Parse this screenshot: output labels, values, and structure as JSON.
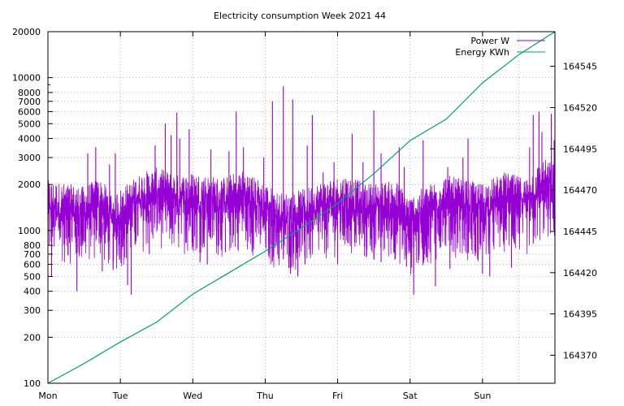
{
  "chart_data": {
    "type": "line",
    "title": "Electricity consumption Week 2021 44",
    "x": {
      "categories": [
        "Mon",
        "Tue",
        "Wed",
        "Thu",
        "Fri",
        "Sat",
        "Sun"
      ],
      "range_days": [
        0,
        7
      ],
      "grid": true
    },
    "y_left": {
      "scale": "log",
      "range": [
        100,
        20000
      ],
      "ticks": [
        100,
        200,
        300,
        400,
        500,
        600,
        700,
        800,
        1000,
        2000,
        3000,
        4000,
        5000,
        6000,
        7000,
        8000,
        10000,
        20000
      ],
      "tick_labels": [
        "100",
        "200",
        "300",
        "400",
        "500",
        "600",
        "700",
        "800",
        "1000",
        "2000",
        "3000",
        "4000",
        "5000",
        "6000",
        "7000",
        "8000",
        "10000",
        "20000"
      ],
      "grid": true
    },
    "y_right": {
      "scale": "linear",
      "range": [
        164353,
        164566
      ],
      "ticks": [
        164370,
        164395,
        164420,
        164445,
        164470,
        164495,
        164520,
        164545
      ],
      "tick_labels": [
        "164370",
        "164395",
        "164420",
        "164445",
        "164470",
        "164495",
        "164520",
        "164545"
      ]
    },
    "legend": {
      "placement": "top-right",
      "entries": [
        "Power W",
        "Energy KWh"
      ]
    },
    "series": [
      {
        "name": "Power W",
        "axis": "left",
        "color": "#9400d3",
        "style": "dense-noisy",
        "baseline": [
          [
            0,
            1150
          ],
          [
            0.5,
            1050
          ],
          [
            0.7,
            1200
          ],
          [
            0.9,
            950
          ],
          [
            1.1,
            1100
          ],
          [
            1.3,
            1300
          ],
          [
            1.5,
            1400
          ],
          [
            1.8,
            1250
          ],
          [
            2.0,
            1300
          ],
          [
            2.4,
            1200
          ],
          [
            2.7,
            1350
          ],
          [
            3.0,
            1100
          ],
          [
            3.2,
            950
          ],
          [
            3.5,
            1000
          ],
          [
            3.8,
            1150
          ],
          [
            4.1,
            1250
          ],
          [
            4.4,
            1100
          ],
          [
            4.8,
            1150
          ],
          [
            5.0,
            900
          ],
          [
            5.2,
            1050
          ],
          [
            5.5,
            1250
          ],
          [
            5.8,
            1150
          ],
          [
            6.0,
            1100
          ],
          [
            6.3,
            1300
          ],
          [
            6.6,
            1200
          ],
          [
            6.85,
            1600
          ],
          [
            7.0,
            1500
          ]
        ],
        "peaks": [
          [
            0.55,
            3200
          ],
          [
            0.66,
            3500
          ],
          [
            0.85,
            2700
          ],
          [
            0.93,
            3200
          ],
          [
            1.48,
            3600
          ],
          [
            1.7,
            4200
          ],
          [
            1.62,
            5000
          ],
          [
            1.78,
            5900
          ],
          [
            1.82,
            4000
          ],
          [
            1.95,
            4600
          ],
          [
            2.25,
            3400
          ],
          [
            2.5,
            3300
          ],
          [
            2.6,
            6000
          ],
          [
            2.7,
            3500
          ],
          [
            2.98,
            3000
          ],
          [
            3.1,
            7000
          ],
          [
            3.25,
            8800
          ],
          [
            3.38,
            7200
          ],
          [
            3.58,
            3600
          ],
          [
            3.65,
            5700
          ],
          [
            3.8,
            2400
          ],
          [
            3.95,
            2800
          ],
          [
            4.2,
            4300
          ],
          [
            4.35,
            2800
          ],
          [
            4.5,
            6100
          ],
          [
            4.6,
            3200
          ],
          [
            4.85,
            3500
          ],
          [
            4.92,
            2600
          ],
          [
            5.18,
            3900
          ],
          [
            5.52,
            2600
          ],
          [
            5.73,
            3000
          ],
          [
            5.8,
            4000
          ],
          [
            6.0,
            2000
          ],
          [
            6.25,
            2200
          ],
          [
            6.38,
            2100
          ],
          [
            6.5,
            2000
          ],
          [
            6.65,
            3500
          ],
          [
            6.7,
            5700
          ],
          [
            6.78,
            6000
          ],
          [
            6.82,
            4400
          ],
          [
            6.95,
            5800
          ],
          [
            6.99,
            3900
          ]
        ],
        "dips": [
          [
            0.05,
            500
          ],
          [
            0.4,
            400
          ],
          [
            0.75,
            540
          ],
          [
            0.9,
            560
          ],
          [
            1.1,
            440
          ],
          [
            1.15,
            380
          ],
          [
            1.4,
            700
          ],
          [
            2.1,
            620
          ],
          [
            2.2,
            600
          ],
          [
            2.45,
            720
          ],
          [
            3.1,
            640
          ],
          [
            3.25,
            650
          ],
          [
            3.35,
            520
          ],
          [
            3.45,
            500
          ],
          [
            3.55,
            600
          ],
          [
            4.0,
            600
          ],
          [
            4.4,
            680
          ],
          [
            4.6,
            620
          ],
          [
            4.95,
            580
          ],
          [
            5.05,
            380
          ],
          [
            5.35,
            430
          ],
          [
            5.55,
            560
          ],
          [
            5.9,
            680
          ],
          [
            6.0,
            520
          ],
          [
            6.1,
            500
          ],
          [
            6.4,
            570
          ],
          [
            6.7,
            820
          ]
        ]
      },
      {
        "name": "Energy KWh",
        "axis": "right",
        "color": "#009e73",
        "points": [
          [
            0,
            164353
          ],
          [
            0.5,
            164365
          ],
          [
            1,
            164378
          ],
          [
            1.5,
            164390
          ],
          [
            2,
            164407
          ],
          [
            2.5,
            164420
          ],
          [
            3,
            164433
          ],
          [
            3.5,
            164447
          ],
          [
            4,
            164462
          ],
          [
            4.5,
            164480
          ],
          [
            5,
            164500
          ],
          [
            5.5,
            164513
          ],
          [
            6,
            164535
          ],
          [
            6.5,
            164552
          ],
          [
            7,
            164566
          ]
        ]
      }
    ]
  }
}
